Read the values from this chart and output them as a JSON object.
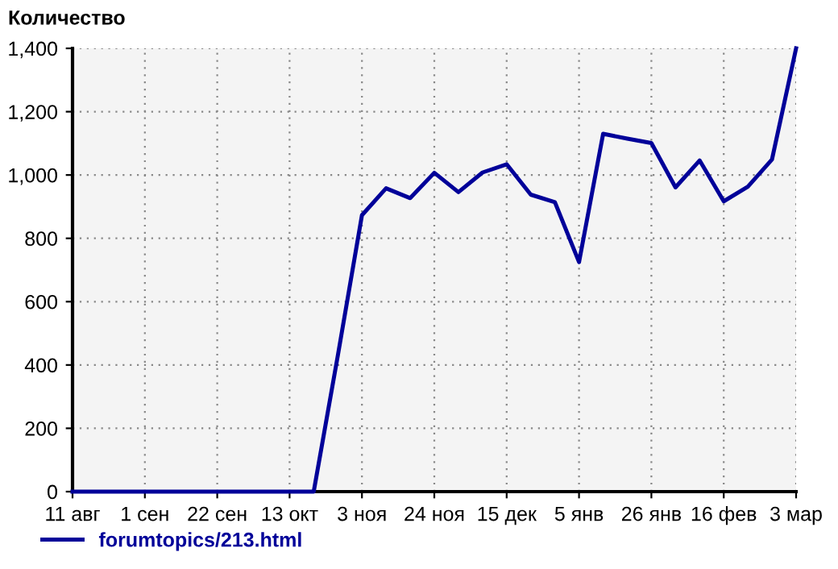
{
  "chart_data": {
    "type": "line",
    "ylabel": "Количество",
    "categories": [
      "11 авг",
      null,
      null,
      "1 сен",
      null,
      null,
      "22 сен",
      null,
      null,
      "13 окт",
      null,
      null,
      "3 ноя",
      null,
      null,
      "24 ноя",
      null,
      null,
      "15 дек",
      null,
      null,
      "5 янв",
      null,
      null,
      "26 янв",
      null,
      null,
      "16 фев",
      null,
      null,
      "3 мар"
    ],
    "series": [
      {
        "name": "forumtopics/213.html",
        "color": "#000099",
        "values": [
          0,
          0,
          0,
          0,
          0,
          0,
          0,
          0,
          0,
          0,
          0,
          430,
          873,
          958,
          927,
          1007,
          946,
          1008,
          1034,
          938,
          914,
          725,
          1130,
          1115,
          1101,
          961,
          1046,
          917,
          963,
          1049,
          1400
        ]
      }
    ],
    "ylim": [
      0,
      1400
    ],
    "yticks": [
      0,
      200,
      400,
      600,
      800,
      {
        "value": 1000,
        "label": "1,000"
      },
      {
        "value": 1200,
        "label": "1,200"
      },
      {
        "value": 1400,
        "label": "1,400"
      }
    ],
    "grid": true,
    "legend": "bottom left",
    "marker": "none",
    "line_style": "solid"
  }
}
